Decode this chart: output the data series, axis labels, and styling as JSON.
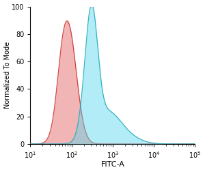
{
  "title": "",
  "xlabel": "FITC-A",
  "ylabel": "Normalized To Mode",
  "ylim": [
    0,
    100
  ],
  "yticks": [
    0,
    20,
    40,
    60,
    80,
    100
  ],
  "red_color": "#e87878",
  "red_edge_color": "#cc3333",
  "blue_color": "#55d8ee",
  "blue_edge_color": "#22aabb",
  "red_fill_alpha": 0.55,
  "blue_fill_alpha": 0.45,
  "background_color": "#ffffff",
  "red_peak_log": 1.92,
  "red_peak_value": 85,
  "blue_peak1_log": 2.42,
  "blue_peak2_log": 2.52,
  "blue_peak_value": 93,
  "font_size": 8
}
